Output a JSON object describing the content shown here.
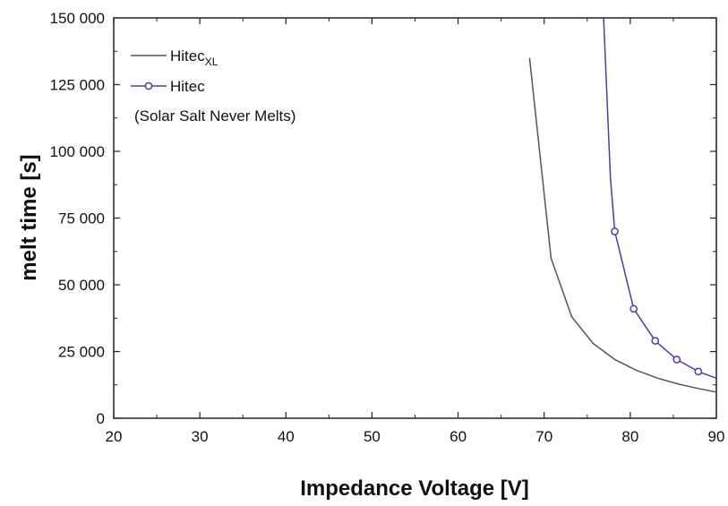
{
  "chart_data": {
    "type": "line",
    "xlabel": "Impedance Voltage [V]",
    "ylabel": "melt time  [s]",
    "xlim": [
      20,
      90
    ],
    "ylim": [
      0,
      150000
    ],
    "x_ticks": [
      "20",
      "30",
      "40",
      "50",
      "60",
      "70",
      "80",
      "90"
    ],
    "y_ticks": [
      "0",
      "25 000",
      "50 000",
      "75 000",
      "100 000",
      "125 000",
      "150 000"
    ],
    "grid": false,
    "legend_position": "top-left",
    "note": "(Solar Salt Never Melts)",
    "series": [
      {
        "name": "Hitec",
        "name_sub": "XL",
        "color": "#555555",
        "marker": "none",
        "x": [
          68.3,
          70.8,
          73.2,
          75.7,
          78.2,
          80.7,
          83.2,
          85.6,
          88.1,
          90.0
        ],
        "y": [
          135000,
          60000,
          38000,
          28000,
          22000,
          18000,
          15000,
          12800,
          11000,
          9800
        ]
      },
      {
        "name": "Hitec",
        "color": "#4040a8",
        "marker": "circle",
        "x": [
          76.9,
          77.7,
          78.2,
          80.4,
          82.9,
          85.4,
          87.9,
          90.0
        ],
        "y": [
          150000,
          90000,
          70000,
          41000,
          29000,
          22000,
          17500,
          15000
        ]
      }
    ]
  }
}
